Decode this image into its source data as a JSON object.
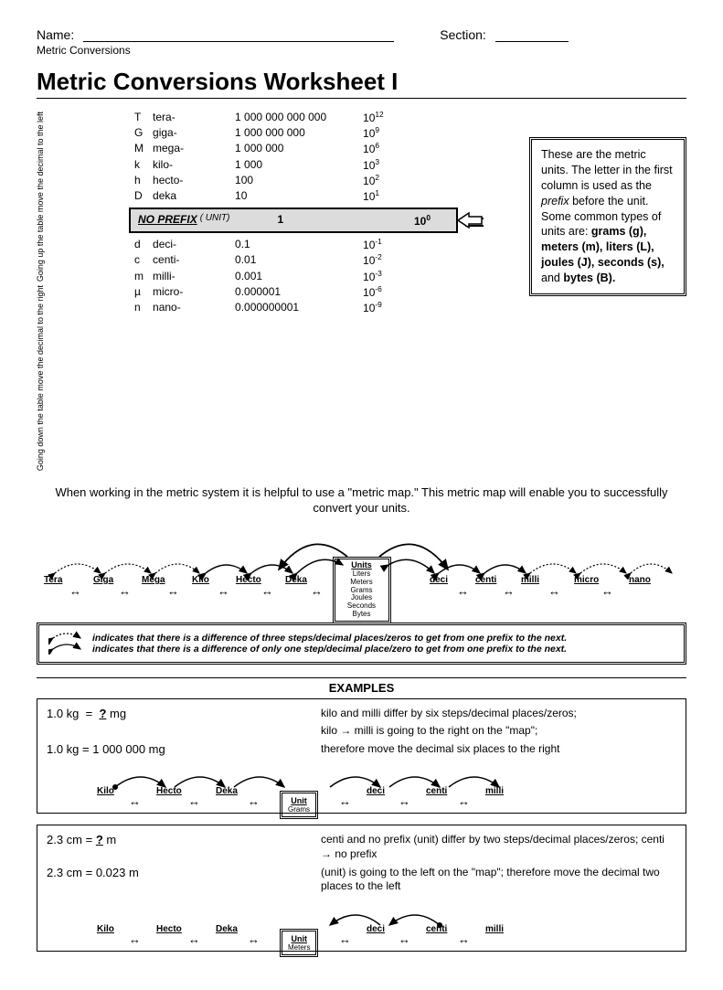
{
  "header": {
    "name_label": "Name:",
    "section_label": "Section:",
    "subtitle": "Metric Conversions",
    "title": "Metric Conversions Worksheet I"
  },
  "vlabels": {
    "up": "Going up the table move the decimal to the  left",
    "down": "Going down the table move the decimal to the  right"
  },
  "prefixes_upper": [
    {
      "sym": "T",
      "name": "tera-",
      "val": "1 000 000 000 000",
      "pow": "12"
    },
    {
      "sym": "G",
      "name": "giga-",
      "val": "1 000 000 000",
      "pow": "9"
    },
    {
      "sym": "M",
      "name": "mega-",
      "val": "1 000 000",
      "pow": "6"
    },
    {
      "sym": "k",
      "name": "kilo-",
      "val": "1 000",
      "pow": "3"
    },
    {
      "sym": "h",
      "name": "hecto-",
      "val": "100",
      "pow": "2"
    },
    {
      "sym": "D",
      "name": "deka",
      "val": "10",
      "pow": "1"
    }
  ],
  "no_prefix": {
    "label": "NO PREFIX",
    "unit": "( UNIT)",
    "one": "1",
    "pow": "0"
  },
  "prefixes_lower": [
    {
      "sym": "d",
      "name": "deci-",
      "val": "0.1",
      "pow": "-1"
    },
    {
      "sym": "c",
      "name": "centi-",
      "val": "0.01",
      "pow": "-2"
    },
    {
      "sym": "m",
      "name": "milli-",
      "val": "0.001",
      "pow": "-3"
    },
    {
      "sym": "µ",
      "name": "micro-",
      "val": "0.000001",
      "pow": "-6"
    },
    {
      "sym": "n",
      "name": "nano-",
      "val": "0.000000001",
      "pow": "-9"
    }
  ],
  "info_box": "These are the metric units. The letter in the first column is used as the <i>prefix</i> before the unit.  Some common types of units are: <b>grams (g), meters (m), liters (L), joules (J), seconds (s),</b> and <b>bytes (B).</b>",
  "intro": "When working in the metric system it is helpful to use a \"metric map.\"  This metric map will enable you to successfully convert your units.",
  "map_left": [
    "Tera",
    "Giga",
    "Mega",
    "Kilo",
    "Hecto",
    "Deka"
  ],
  "map_right": [
    "deci",
    "centi",
    "milli",
    "micro",
    "nano"
  ],
  "units_box": {
    "title": "Units",
    "items": [
      "Liters",
      "Meters",
      "Grams",
      "Joules",
      "Seconds",
      "Bytes"
    ]
  },
  "legend": {
    "line1": "indicates that there is a difference of  three steps/decimal places/zeros to get from one prefix to the next.",
    "line2": "indicates that  there is a difference of only one step/decimal place/zero to get from one prefix to the next."
  },
  "examples_label": "EXAMPLES",
  "ex1": {
    "q1": "1.0 kg  =  ? mg",
    "q2": "1.0 kg  =  1 000 000 mg",
    "note1": "kilo and milli differ by six steps/decimal places/zeros;",
    "note2": "kilo → milli is going to the right on the \"map\";",
    "note3": "therefore move the decimal six places to the right",
    "map": [
      "Kilo",
      "Hecto",
      "Deka"
    ],
    "map_r": [
      "deci",
      "centi",
      "milli"
    ],
    "unit_label": "Unit",
    "unit_sub": "Grams"
  },
  "ex2": {
    "q1": "2.3 cm = ? m",
    "q2": "2.3 cm = 0.023 m",
    "note1": "centi and no prefix (unit) differ by two steps/decimal places/zeros; centi → no prefix",
    "note2": "(unit) is going to the left on the \"map\"; therefore move the decimal two places to the left",
    "map": [
      "Kilo",
      "Hecto",
      "Deka"
    ],
    "map_r": [
      "deci",
      "centi",
      "milli"
    ],
    "unit_label": "Unit",
    "unit_sub": "Meters"
  },
  "colors": {
    "bg": "#ffffff",
    "text": "#000000",
    "gray_fill": "#dcdcdc"
  }
}
